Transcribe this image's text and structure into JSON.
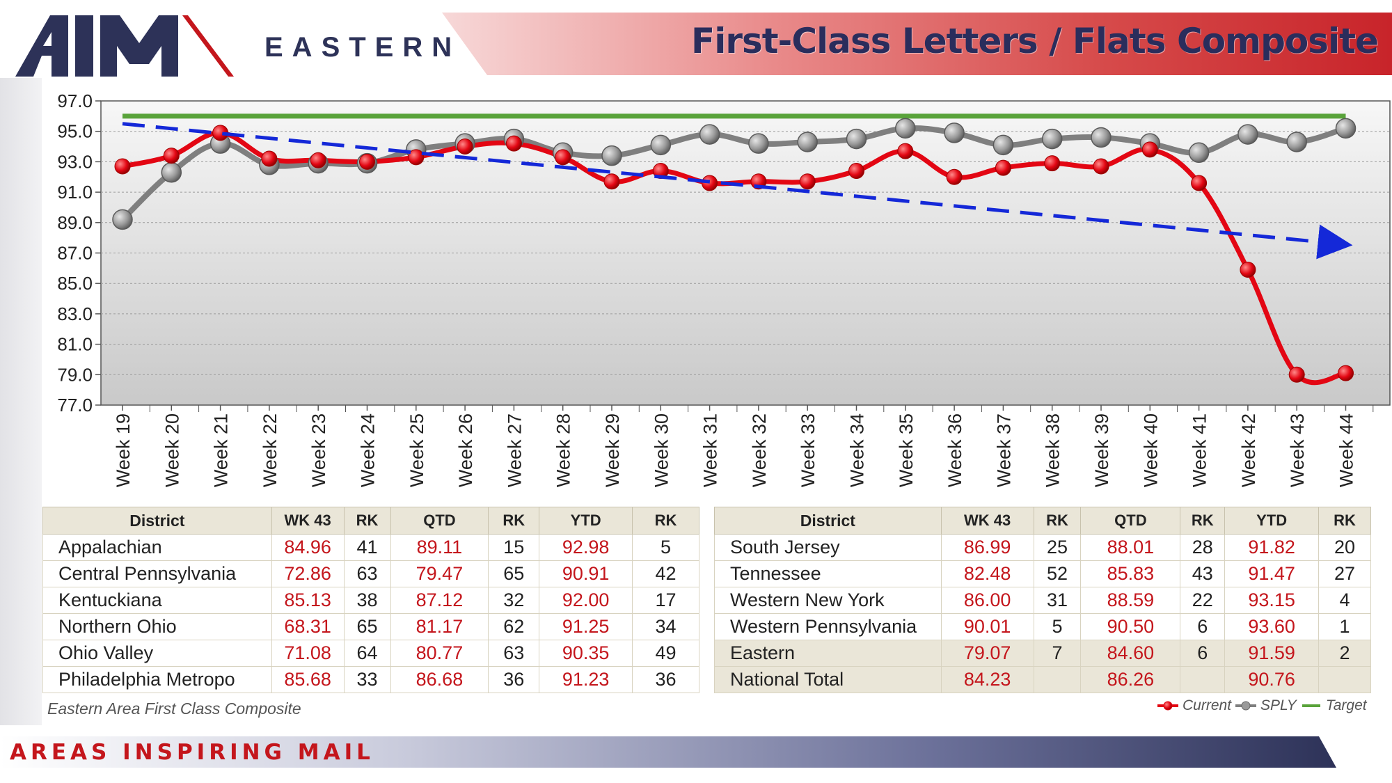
{
  "header": {
    "brand": "EASTERN",
    "title": "First-Class Letters / Flats Composite"
  },
  "colors": {
    "current": "#e30613",
    "sply": "#7f7f7f",
    "target": "#59a33a",
    "trend": "#1428d8",
    "navy": "#2d3258",
    "red": "#c4161c"
  },
  "chart_data": {
    "type": "line",
    "categories": [
      "Week 19",
      "Week 20",
      "Week 21",
      "Week 22",
      "Week 23",
      "Week 24",
      "Week 25",
      "Week 26",
      "Week 27",
      "Week 28",
      "Week 29",
      "Week 30",
      "Week 31",
      "Week 32",
      "Week 33",
      "Week 34",
      "Week 35",
      "Week 36",
      "Week 37",
      "Week 38",
      "Week 39",
      "Week 40",
      "Week 41",
      "Week 42",
      "Week 43",
      "Week 44"
    ],
    "series": [
      {
        "name": "Current",
        "values": [
          92.7,
          93.4,
          94.9,
          93.2,
          93.1,
          93.0,
          93.3,
          94.0,
          94.2,
          93.3,
          91.7,
          92.4,
          91.6,
          91.7,
          91.7,
          92.4,
          93.7,
          92.0,
          92.6,
          92.9,
          92.7,
          93.8,
          91.6,
          85.9,
          79.0,
          79.1
        ]
      },
      {
        "name": "SPLY",
        "values": [
          89.2,
          92.3,
          94.2,
          92.8,
          92.9,
          92.9,
          93.8,
          94.2,
          94.5,
          93.6,
          93.4,
          94.1,
          94.8,
          94.2,
          94.3,
          94.5,
          95.2,
          94.9,
          94.1,
          94.5,
          94.6,
          94.2,
          93.6,
          94.8,
          94.3,
          95.2
        ]
      },
      {
        "name": "Target",
        "values": [
          96.0,
          96.0,
          96.0,
          96.0,
          96.0,
          96.0,
          96.0,
          96.0,
          96.0,
          96.0,
          96.0,
          96.0,
          96.0,
          96.0,
          96.0,
          96.0,
          96.0,
          96.0,
          96.0,
          96.0,
          96.0,
          96.0,
          96.0,
          96.0,
          96.0,
          96.0
        ]
      }
    ],
    "trend": {
      "start": 95.5,
      "end": 87.6
    },
    "y_ticks": [
      "97.0",
      "95.0",
      "93.0",
      "91.0",
      "89.0",
      "87.0",
      "85.0",
      "83.0",
      "81.0",
      "79.0",
      "77.0"
    ],
    "ylim": [
      77.0,
      97.0
    ],
    "grid": true,
    "legend": "bottom-right"
  },
  "tables": {
    "headers": [
      "District",
      "WK 43",
      "RK",
      "QTD",
      "RK",
      "YTD",
      "RK"
    ],
    "left_rows": [
      [
        "Appalachian",
        "84.96",
        "41",
        "89.11",
        "15",
        "92.98",
        "5"
      ],
      [
        "Central Pennsylvania",
        "72.86",
        "63",
        "79.47",
        "65",
        "90.91",
        "42"
      ],
      [
        "Kentuckiana",
        "85.13",
        "38",
        "87.12",
        "32",
        "92.00",
        "17"
      ],
      [
        "Northern Ohio",
        "68.31",
        "65",
        "81.17",
        "62",
        "91.25",
        "34"
      ],
      [
        "Ohio Valley",
        "71.08",
        "64",
        "80.77",
        "63",
        "90.35",
        "49"
      ],
      [
        "Philadelphia Metropo",
        "85.68",
        "33",
        "86.68",
        "36",
        "91.23",
        "36"
      ]
    ],
    "right_rows": [
      [
        "South Jersey",
        "86.99",
        "25",
        "88.01",
        "28",
        "91.82",
        "20"
      ],
      [
        "Tennessee",
        "82.48",
        "52",
        "85.83",
        "43",
        "91.47",
        "27"
      ],
      [
        "Western New York",
        "86.00",
        "31",
        "88.59",
        "22",
        "93.15",
        "4"
      ],
      [
        "Western Pennsylvania",
        "90.01",
        "5",
        "90.50",
        "6",
        "93.60",
        "1"
      ],
      [
        "Eastern",
        "79.07",
        "7",
        "84.60",
        "6",
        "91.59",
        "2"
      ],
      [
        "National Total",
        "84.23",
        "",
        "86.26",
        "",
        "90.76",
        ""
      ]
    ],
    "caption": "Eastern Area First Class Composite"
  },
  "legend": {
    "current": "Current",
    "sply": "SPLY",
    "target": "Target"
  },
  "footer": {
    "tagline": "AREAS INSPIRING MAIL"
  }
}
